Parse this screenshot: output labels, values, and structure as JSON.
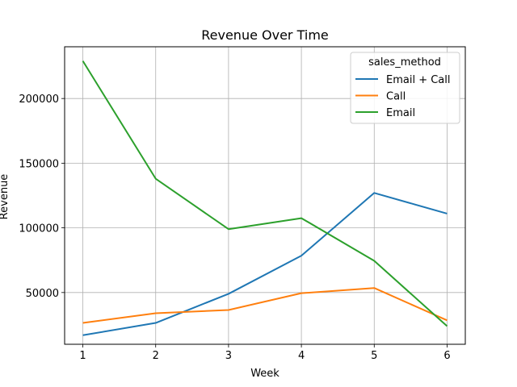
{
  "chart_data": {
    "type": "line",
    "title": "Revenue Over Time",
    "xlabel": "Week",
    "ylabel": "Revenue",
    "x": [
      1,
      2,
      3,
      4,
      5,
      6
    ],
    "xlim": [
      0.75,
      6.25
    ],
    "ylim": [
      10000,
      240000
    ],
    "xticks": [
      1,
      2,
      3,
      4,
      5,
      6
    ],
    "yticks": [
      50000,
      100000,
      150000,
      200000
    ],
    "grid": true,
    "legend": {
      "title": "sales_method",
      "placement": "top-right"
    },
    "series": [
      {
        "name": "Email + Call",
        "color": "#1f77b4",
        "values": [
          17000,
          26500,
          49000,
          78500,
          127000,
          111000
        ]
      },
      {
        "name": "Call",
        "color": "#ff7f0e",
        "values": [
          26500,
          34000,
          36500,
          49500,
          53500,
          28500
        ]
      },
      {
        "name": "Email",
        "color": "#2ca02c",
        "values": [
          229000,
          138000,
          99000,
          107500,
          74500,
          24000
        ]
      }
    ]
  }
}
